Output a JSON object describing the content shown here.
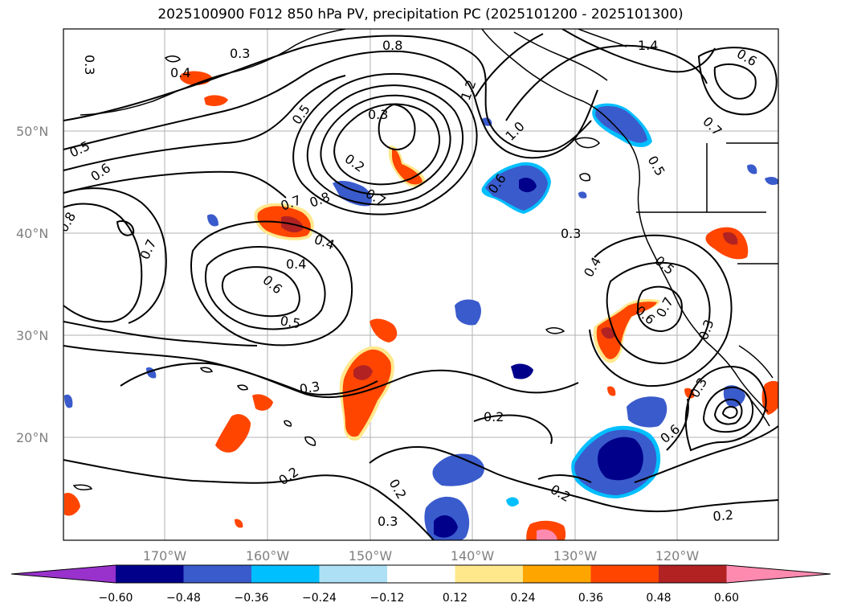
{
  "title": "2025100900 F012 850 hPa PV, precipitation PC (2025101200 - 2025101300)",
  "map": {
    "lat_labels": [
      "50°N",
      "40°N",
      "30°N",
      "20°N"
    ],
    "lon_labels": [
      "170°W",
      "160°W",
      "150°W",
      "140°W",
      "130°W",
      "120°W"
    ],
    "contour_labels": [
      "0.3",
      "0.4",
      "0.3",
      "0.8",
      "1.4",
      "0.6",
      "1.2",
      "0.3",
      "0.5",
      "1.0",
      "0.7",
      "0.5",
      "0.6",
      "0.2",
      "0.5",
      "0.6",
      "0.7",
      "0.7",
      "0.8",
      "0.8",
      "0.4",
      "0.3",
      "0.7",
      "0.4",
      "0.5",
      "0.4",
      "0.6",
      "0.6",
      "0.7",
      "0.5",
      "0.3",
      "0.3",
      "0.2",
      "0.6",
      "0.3",
      "0.2",
      "0.2",
      "0.2",
      "0.3",
      "0.2"
    ],
    "colors": {
      "contour": "#000000",
      "grid": "#b0b0b0",
      "coast": "#000000"
    }
  },
  "colorbar": {
    "ticks": [
      "−0.60",
      "−0.48",
      "−0.36",
      "−0.24",
      "−0.12",
      "0.12",
      "0.24",
      "0.36",
      "0.48",
      "0.60"
    ],
    "colors": [
      "#9932CC",
      "#00008B",
      "#3A5BCC",
      "#00BFFF",
      "#ADE0F5",
      "#FFFFFF",
      "#FFE88C",
      "#FFA500",
      "#FF4500",
      "#B22222",
      "#FF8AB0"
    ]
  }
}
